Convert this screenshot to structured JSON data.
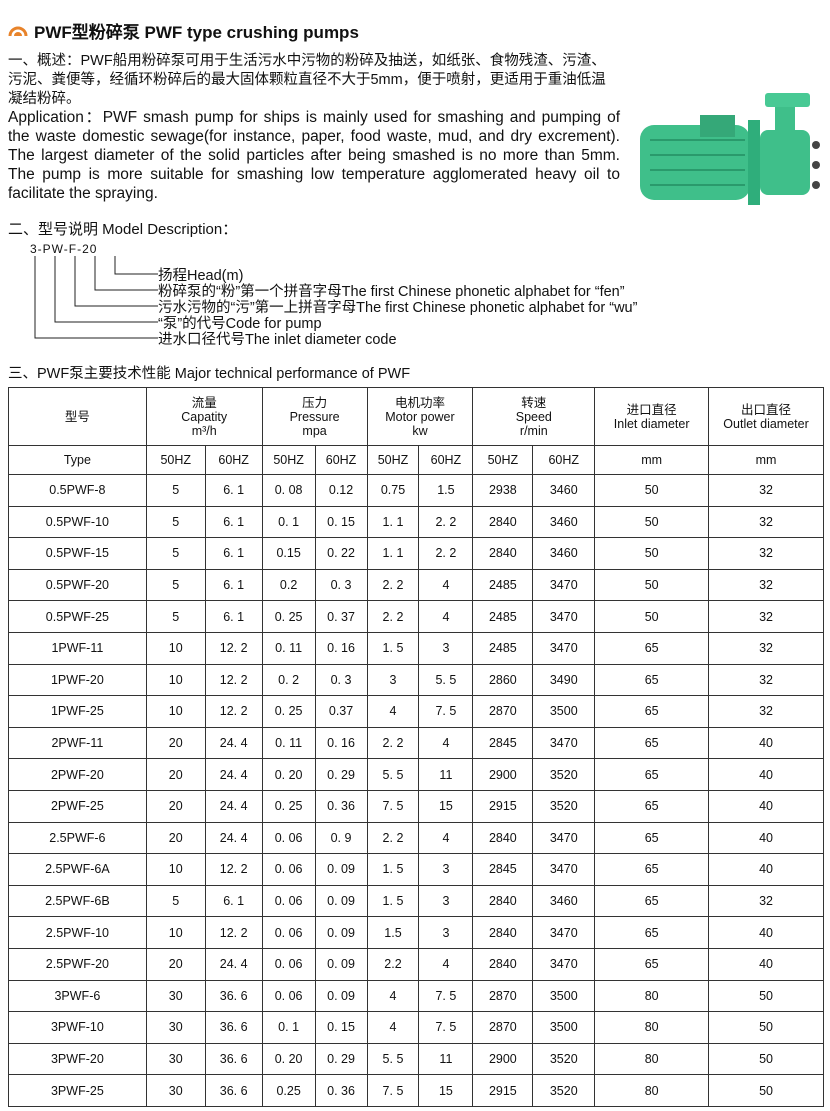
{
  "title": "PWF型粉碎泵 PWF type crushing pumps",
  "intro": "一、概述：PWF船用粉碎泵可用于生活污水中污物的粉碎及抽送，如纸张、食物残渣、污渣、污泥、粪便等，经循环粉碎后的最大固体颗粒直径不大于5mm，便于喷射，更适用于重油低温凝结粉碎。",
  "application": "Application：PWF smash pump for ships is mainly used for smashing and pumping of the waste domestic sewage(for instance, paper, food waste, mud, and dry excrement). The largest diameter of the solid particles after being smashed is no more than 5mm. The pump is more suitable for smashing low temperature agglomerated heavy oil to facilitate the spraying.",
  "model": {
    "heading": "二、型号说明  Model Description：",
    "code": "3-PW-F-20",
    "legend": [
      "扬程Head(m)",
      "粉碎泵的“粉”第一个拼音字母The first Chinese phonetic alphabet for “fen”",
      "污水污物的“污”第一上拼音字母The first Chinese phonetic alphabet for “wu”",
      "“泵”的代号Code for pump",
      "进水口径代号The inlet diameter code"
    ]
  },
  "table": {
    "heading": "三、PWF泵主要技术性能 Major technical performance of PWF",
    "headers": [
      "型号",
      "流量\nCapatity\nm³/h",
      "压力\nPressure\nmpa",
      "电机功率\nMotor power\nkw",
      "转速\nSpeed\nr/min",
      "进口直径\nInlet diameter",
      "出口直径\nOutlet diameter"
    ],
    "subheaders": [
      "Type",
      "50HZ",
      "60HZ",
      "50HZ",
      "60HZ",
      "50HZ",
      "60HZ",
      "50HZ",
      "60HZ",
      "mm",
      "mm"
    ],
    "rows": [
      [
        "0.5PWF-8",
        "5",
        "6. 1",
        "0. 08",
        "0.12",
        "0.75",
        "1.5",
        "2938",
        "3460",
        "50",
        "32"
      ],
      [
        "0.5PWF-10",
        "5",
        "6. 1",
        "0. 1",
        "0. 15",
        "1. 1",
        "2. 2",
        "2840",
        "3460",
        "50",
        "32"
      ],
      [
        "0.5PWF-15",
        "5",
        "6. 1",
        "0.15",
        "0. 22",
        "1. 1",
        "2. 2",
        "2840",
        "3460",
        "50",
        "32"
      ],
      [
        "0.5PWF-20",
        "5",
        "6. 1",
        "0.2",
        "0. 3",
        "2. 2",
        "4",
        "2485",
        "3470",
        "50",
        "32"
      ],
      [
        "0.5PWF-25",
        "5",
        "6. 1",
        "0. 25",
        "0. 37",
        "2. 2",
        "4",
        "2485",
        "3470",
        "50",
        "32"
      ],
      [
        "1PWF-11",
        "10",
        "12. 2",
        "0. 11",
        "0. 16",
        "1. 5",
        "3",
        "2485",
        "3470",
        "65",
        "32"
      ],
      [
        "1PWF-20",
        "10",
        "12. 2",
        "0. 2",
        "0. 3",
        "3",
        "5. 5",
        "2860",
        "3490",
        "65",
        "32"
      ],
      [
        "1PWF-25",
        "10",
        "12. 2",
        "0. 25",
        "0.37",
        "4",
        "7. 5",
        "2870",
        "3500",
        "65",
        "32"
      ],
      [
        "2PWF-11",
        "20",
        "24. 4",
        "0. 11",
        "0. 16",
        "2. 2",
        "4",
        "2845",
        "3470",
        "65",
        "40"
      ],
      [
        "2PWF-20",
        "20",
        "24. 4",
        "0. 20",
        "0. 29",
        "5. 5",
        "11",
        "2900",
        "3520",
        "65",
        "40"
      ],
      [
        "2PWF-25",
        "20",
        "24. 4",
        "0. 25",
        "0. 36",
        "7. 5",
        "15",
        "2915",
        "3520",
        "65",
        "40"
      ],
      [
        "2.5PWF-6",
        "20",
        "24. 4",
        "0. 06",
        "0. 9",
        "2. 2",
        "4",
        "2840",
        "3470",
        "65",
        "40"
      ],
      [
        "2.5PWF-6A",
        "10",
        "12. 2",
        "0. 06",
        "0. 09",
        "1. 5",
        "3",
        "2845",
        "3470",
        "65",
        "40"
      ],
      [
        "2.5PWF-6B",
        "5",
        "6. 1",
        "0. 06",
        "0. 09",
        "1. 5",
        "3",
        "2840",
        "3460",
        "65",
        "32"
      ],
      [
        "2.5PWF-10",
        "10",
        "12. 2",
        "0. 06",
        "0. 09",
        "1.5",
        "3",
        "2840",
        "3470",
        "65",
        "40"
      ],
      [
        "2.5PWF-20",
        "20",
        "24. 4",
        "0. 06",
        "0. 09",
        "2.2",
        "4",
        "2840",
        "3470",
        "65",
        "40"
      ],
      [
        "3PWF-6",
        "30",
        "36. 6",
        "0. 06",
        "0. 09",
        "4",
        "7. 5",
        "2870",
        "3500",
        "80",
        "50"
      ],
      [
        "3PWF-10",
        "30",
        "36. 6",
        "0. 1",
        "0. 15",
        "4",
        "7. 5",
        "2870",
        "3500",
        "80",
        "50"
      ],
      [
        "3PWF-20",
        "30",
        "36. 6",
        "0. 20",
        "0. 29",
        "5. 5",
        "11",
        "2900",
        "3520",
        "80",
        "50"
      ],
      [
        "3PWF-25",
        "30",
        "36. 6",
        "0.25",
        "0. 36",
        "7. 5",
        "15",
        "2915",
        "3520",
        "80",
        "50"
      ]
    ]
  },
  "colors": {
    "icon": "#e8832a",
    "pump": "#3fbf8a"
  }
}
